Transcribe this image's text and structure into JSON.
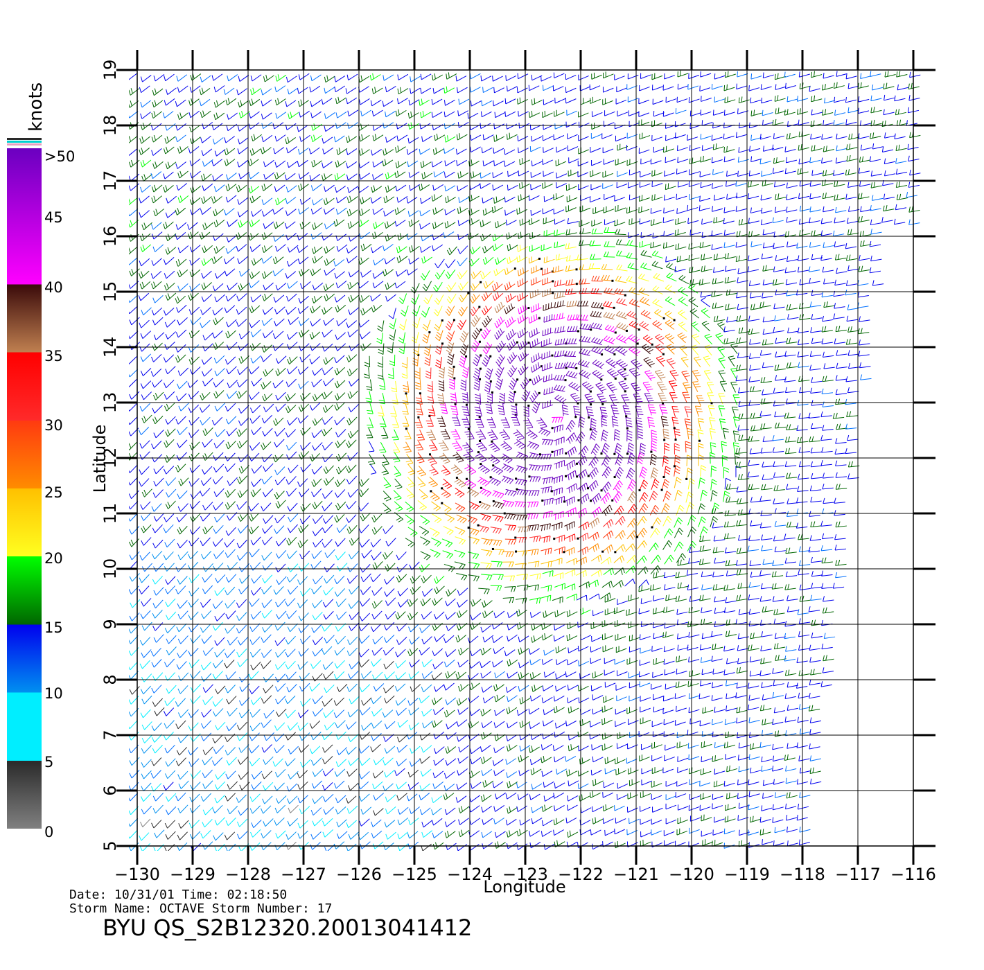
{
  "figure": {
    "title": "BYU  QS_S2B12320.20013041412",
    "info_line1": "Date:  10/31/01    Time:  02:18:50",
    "info_line2": "Storm  Name:  OCTAVE    Storm  Number:  17"
  },
  "axes": {
    "xlabel": "Longitude",
    "ylabel": "Latitude",
    "x_range": [
      -130,
      -116
    ],
    "y_range": [
      5,
      19
    ],
    "x_ticks": [
      "−130",
      "−129",
      "−128",
      "−127",
      "−126",
      "−125",
      "−124",
      "−123",
      "−122",
      "−121",
      "−120",
      "−119",
      "−118",
      "−117",
      "−116"
    ],
    "y_ticks": [
      "5",
      "6",
      "7",
      "8",
      "9",
      "10",
      "11",
      "12",
      "13",
      "14",
      "15",
      "16",
      "17",
      "18",
      "19"
    ],
    "grid": true
  },
  "colorbar": {
    "unit": "knots",
    "labels": [
      ">50",
      "45",
      "40",
      "35",
      "30",
      "25",
      "20",
      "15",
      "10",
      "5",
      "0"
    ]
  },
  "chart_data": {
    "type": "wind-barb field",
    "variable": "wind speed",
    "unit": "knots",
    "storm_center": {
      "lon": -122.5,
      "lat": 12.8
    },
    "speed_bins": [
      {
        "range": [
          0,
          5
        ],
        "colors": [
          "#808080",
          "#2a2a2a"
        ]
      },
      {
        "range": [
          5,
          10
        ],
        "colors": [
          "#00eeff",
          "#0090f0"
        ]
      },
      {
        "range": [
          10,
          15
        ],
        "colors": [
          "#0070ff",
          "#0000ee"
        ]
      },
      {
        "range": [
          15,
          20
        ],
        "colors": [
          "#006600",
          "#00ff00"
        ]
      },
      {
        "range": [
          20,
          25
        ],
        "colors": [
          "#ffff20",
          "#ffc000"
        ]
      },
      {
        "range": [
          25,
          30
        ],
        "colors": [
          "#ff8c00",
          "#ff3a10"
        ]
      },
      {
        "range": [
          30,
          35
        ],
        "colors": [
          "#ff2a2a",
          "#ff0000"
        ]
      },
      {
        "range": [
          35,
          40
        ],
        "colors": [
          "#c08050",
          "#3a0a0a"
        ]
      },
      {
        "range": [
          40,
          50
        ],
        "colors": [
          "#ff00ff",
          "#6a00c0"
        ]
      }
    ]
  }
}
